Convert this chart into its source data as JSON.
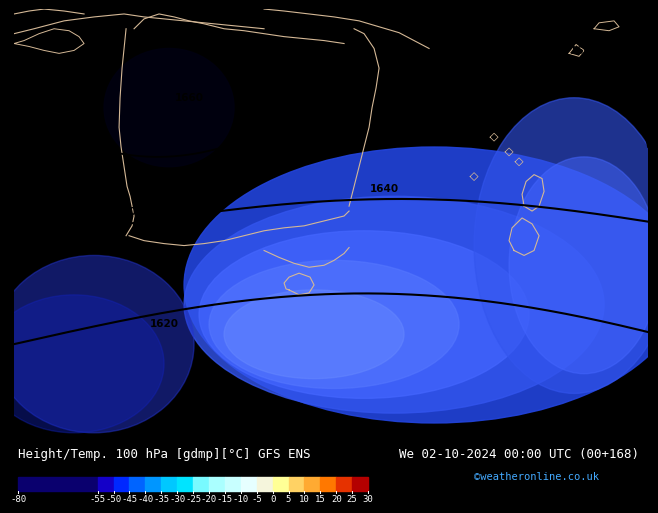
{
  "title_left": "Height/Temp. 100 hPa [gdmp][°C] GFS ENS",
  "title_right": "We 02-10-2024 00:00 UTC (00+168)",
  "credit": "©weatheronline.co.uk",
  "colorbar_ticks": [
    -80,
    -55,
    -50,
    -45,
    -40,
    -35,
    -30,
    -25,
    -20,
    -15,
    -10,
    -5,
    0,
    5,
    10,
    15,
    20,
    25,
    30
  ],
  "colorbar_colors": [
    "#0a006e",
    "#1400c8",
    "#0028ff",
    "#0064ff",
    "#0096ff",
    "#00c8ff",
    "#00e4ff",
    "#78faff",
    "#aaffff",
    "#c8ffff",
    "#e6ffff",
    "#f5f5dc",
    "#ffff96",
    "#ffd264",
    "#ffaa32",
    "#ff7800",
    "#e63200",
    "#b40000",
    "#780000"
  ],
  "map_bg": "#0000cc",
  "coast_color": "#d4b896",
  "contour_color": "#000000",
  "title_color": "#ffffff",
  "bottom_bg": "#000000",
  "credit_color": "#44aaff",
  "title_fontsize": 9.0,
  "credit_fontsize": 7.5,
  "tick_fontsize": 6.5
}
